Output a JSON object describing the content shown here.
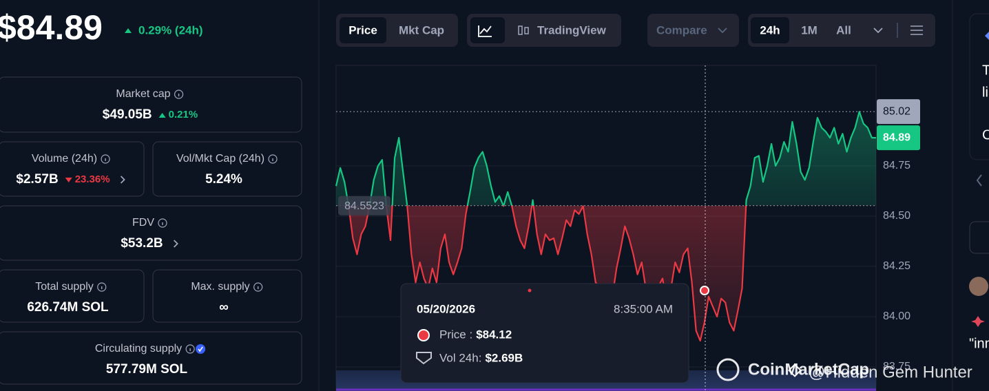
{
  "header": {
    "price": "$84.89",
    "change": "0.29% (24h)"
  },
  "stats": [
    {
      "label": "Market cap",
      "value": "$49.05B",
      "change": "0.21%"
    },
    {
      "label": "Volume (24h)",
      "value": "$2.57B",
      "change": "23.36%"
    },
    {
      "label": "Vol/Mkt Cap (24h)",
      "value": "5.24%"
    },
    {
      "label": "FDV",
      "value": "$53.2B"
    },
    {
      "label": "Total supply",
      "value": "626.74M SOL"
    },
    {
      "label": "Max. supply",
      "value": "∞"
    },
    {
      "label": "Circulating supply",
      "value": "577.79M SOL"
    }
  ],
  "toolbar": {
    "views": [
      "Price",
      "Mkt Cap"
    ],
    "chart_mode": "TradingView",
    "compare": "Compare",
    "ranges": [
      "24h",
      "1M",
      "All"
    ]
  },
  "chart_data": {
    "type": "line",
    "values": [
      84.65,
      84.74,
      84.67,
      84.55,
      84.39,
      84.31,
      84.41,
      84.45,
      84.55,
      84.68,
      84.75,
      84.78,
      84.55,
      84.38,
      84.79,
      84.89,
      84.72,
      84.55,
      84.31,
      84.17,
      84.27,
      84.19,
      84.14,
      84.24,
      84.17,
      84.34,
      84.41,
      84.27,
      84.21,
      84.27,
      84.34,
      84.51,
      84.62,
      84.74,
      84.79,
      84.82,
      84.75,
      84.65,
      84.57,
      84.6,
      84.55,
      84.62,
      84.55,
      84.45,
      84.38,
      84.34,
      84.45,
      84.58,
      84.41,
      84.31,
      84.41,
      84.38,
      84.39,
      84.31,
      84.39,
      84.48,
      84.45,
      84.53,
      84.51,
      84.55,
      84.41,
      84.31,
      84.17,
      84.15,
      84.07,
      84.14,
      84.1,
      84.24,
      84.34,
      84.45,
      84.39,
      84.31,
      84.21,
      84.27,
      84.14,
      84.03,
      84.14,
      84.15,
      84.19,
      84.07,
      84.14,
      84.27,
      84.22,
      84.31,
      84.34,
      84.17,
      83.93,
      83.88,
      83.97,
      84.1,
      84.05,
      84.0,
      84.09,
      84.07,
      83.97,
      83.93,
      84.03,
      84.14,
      84.58,
      84.65,
      84.79,
      84.8,
      84.67,
      84.75,
      84.86,
      84.75,
      84.79,
      84.87,
      84.82,
      84.97,
      84.86,
      84.72,
      84.68,
      84.74,
      84.87,
      84.99,
      84.94,
      84.92,
      84.89,
      84.94,
      84.86,
      84.91,
      84.82,
      84.89,
      84.94,
      85.02,
      84.96,
      84.94,
      84.89,
      84.89
    ],
    "baseline": 84.5523,
    "high": 85.02,
    "last": 84.89,
    "up_color": "#16c784",
    "down_color": "#ea3943",
    "ylim": [
      83.63,
      85.25
    ],
    "yticks": [
      83.75,
      {
        "value": 84,
        "label": "84.00"
      },
      84.25,
      {
        "value": 84.5,
        "label": "84.50"
      },
      84.75
    ],
    "grid": true
  },
  "tooltip": {
    "date": "05/20/2026",
    "time": "8:35:00 AM",
    "price_label": "Price :",
    "price": "$84.12",
    "volume_label": "Vol 24h:",
    "volume": "$2.69B"
  },
  "watermark": {
    "brand": "CoinMarketCap",
    "credit": "@Hidden Gem Hunter"
  },
  "sidebar": {
    "lines": [
      "T",
      "li",
      "C"
    ],
    "comment": "\"inn"
  }
}
